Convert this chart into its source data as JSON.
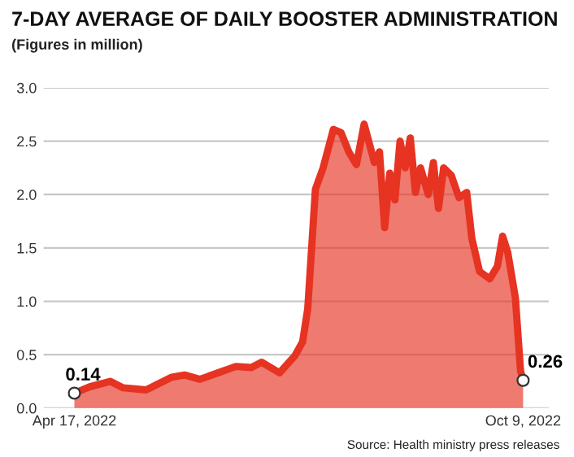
{
  "chart_data": {
    "type": "area",
    "title": "7-DAY AVERAGE OF DAILY BOOSTER ADMINISTRATION",
    "subtitle": "(Figures in million)",
    "x": [
      "2022-04-17",
      "2022-04-23",
      "2022-05-01",
      "2022-05-06",
      "2022-05-15",
      "2022-05-25",
      "2022-05-30",
      "2022-06-05",
      "2022-06-12",
      "2022-06-19",
      "2022-06-25",
      "2022-06-29",
      "2022-07-06",
      "2022-07-12",
      "2022-07-15",
      "2022-07-17",
      "2022-07-20",
      "2022-07-23",
      "2022-07-27",
      "2022-07-30",
      "2022-08-02",
      "2022-08-05",
      "2022-08-08",
      "2022-08-12",
      "2022-08-14",
      "2022-08-16",
      "2022-08-18",
      "2022-08-20",
      "2022-08-22",
      "2022-08-24",
      "2022-08-26",
      "2022-08-28",
      "2022-08-30",
      "2022-09-02",
      "2022-09-04",
      "2022-09-06",
      "2022-09-08",
      "2022-09-11",
      "2022-09-14",
      "2022-09-17",
      "2022-09-19",
      "2022-09-22",
      "2022-09-26",
      "2022-09-29",
      "2022-10-01",
      "2022-10-03",
      "2022-10-06",
      "2022-10-08",
      "2022-10-09"
    ],
    "series": [
      {
        "color": "#e63322",
        "values": [
          0.14,
          0.2,
          0.25,
          0.19,
          0.17,
          0.29,
          0.31,
          0.27,
          0.33,
          0.39,
          0.38,
          0.43,
          0.33,
          0.49,
          0.62,
          0.93,
          2.05,
          2.25,
          2.61,
          2.58,
          2.4,
          2.28,
          2.66,
          2.3,
          2.4,
          1.69,
          2.2,
          1.95,
          2.5,
          2.25,
          2.53,
          2.02,
          2.25,
          2.0,
          2.3,
          1.87,
          2.25,
          2.18,
          1.97,
          2.02,
          1.59,
          1.28,
          1.21,
          1.33,
          1.61,
          1.46,
          1.03,
          0.35,
          0.26
        ]
      }
    ],
    "xlim": [
      "2022-04-05",
      "2022-10-19"
    ],
    "xticks": [
      {
        "value": "2022-04-17",
        "label": "Apr 17, 2022"
      },
      {
        "value": "2022-10-09",
        "label": "Oct 9, 2022"
      }
    ],
    "ylim": [
      0,
      3.0
    ],
    "yticks": [
      {
        "value": 0,
        "label": "0.0"
      },
      {
        "value": 0.5,
        "label": "0.5"
      },
      {
        "value": 1.0,
        "label": "1.0"
      },
      {
        "value": 1.5,
        "label": "1.5"
      },
      {
        "value": 2.0,
        "label": "2.0"
      },
      {
        "value": 2.5,
        "label": "2.5"
      },
      {
        "value": 3.0,
        "label": "3.0"
      }
    ],
    "grid": "y",
    "legend": false,
    "annotations": [
      {
        "text": "0.14",
        "x": "2022-04-17",
        "y": 0.14
      },
      {
        "text": "0.26",
        "x": "2022-10-09",
        "y": 0.26
      },
      "Source: Health ministry press releases"
    ]
  }
}
